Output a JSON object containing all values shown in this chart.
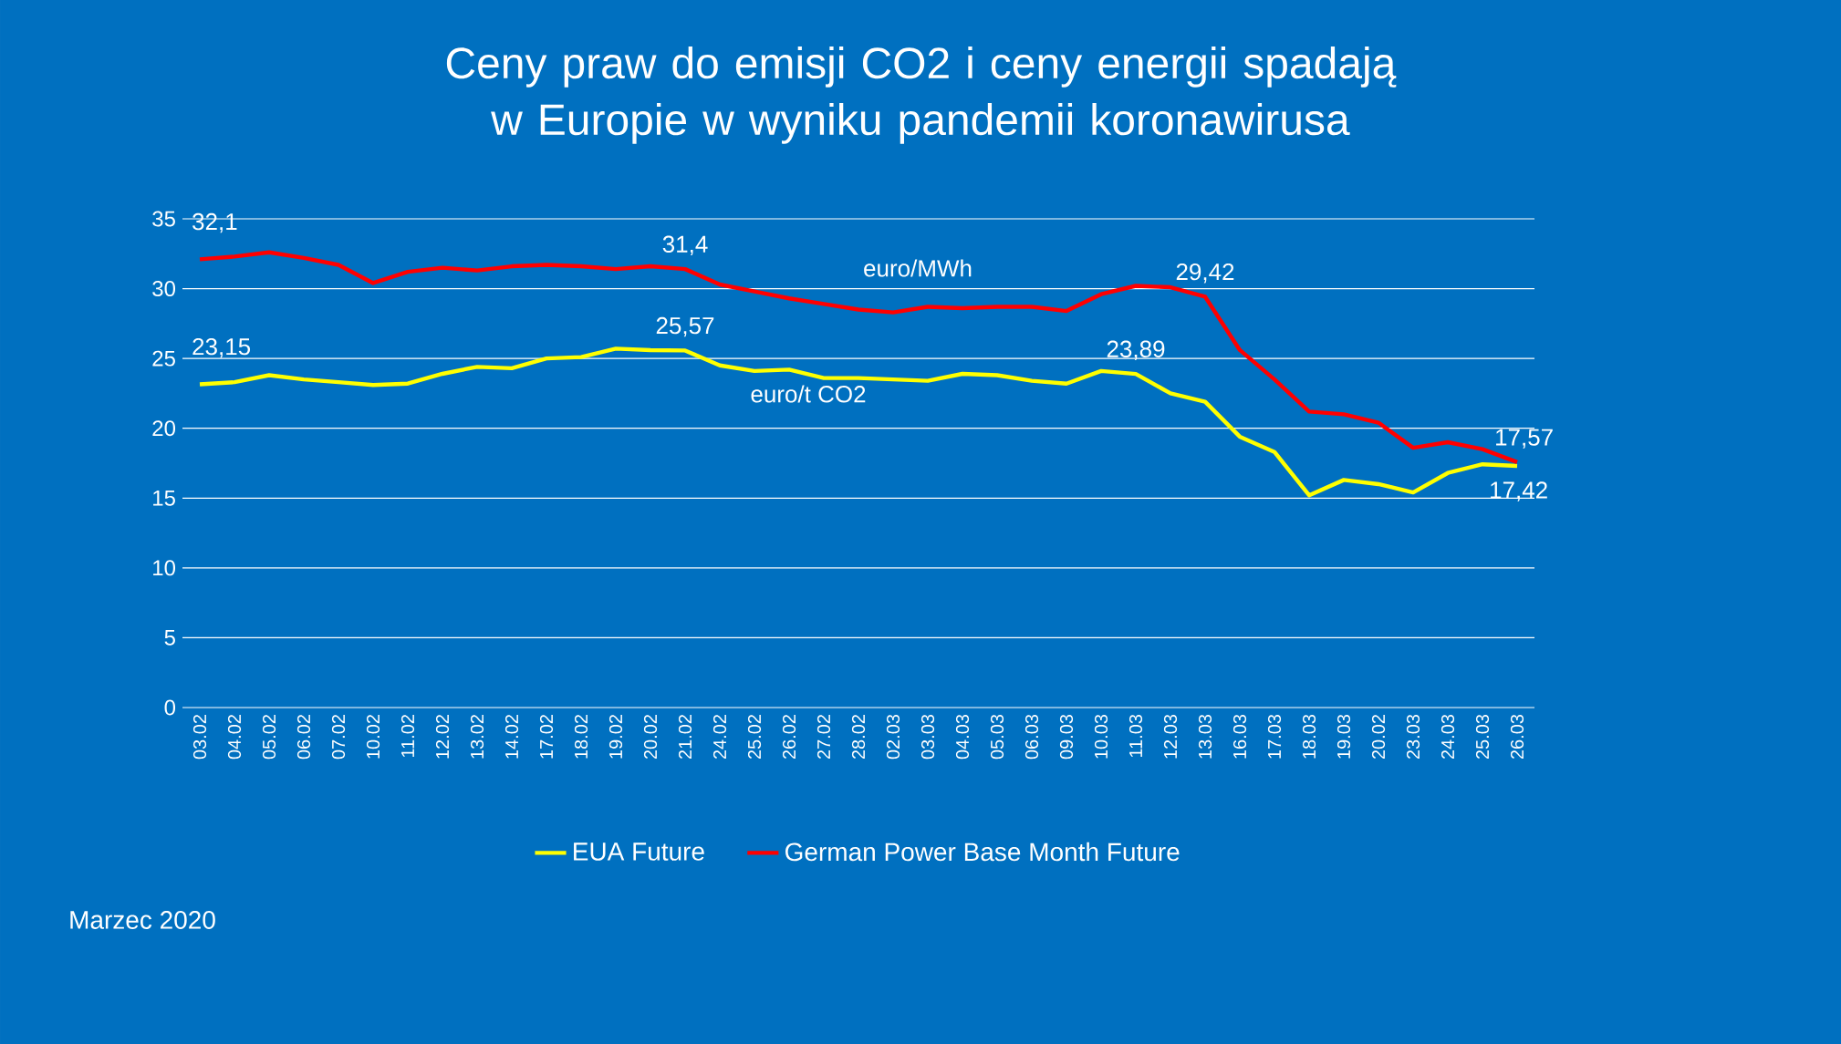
{
  "chart_data": {
    "type": "line",
    "title": "Ceny praw do emisji CO2 i ceny energii spadają w Europie w wyniku pandemii koronawirusa",
    "categories": [
      "03.02",
      "04.02",
      "05.02",
      "06.02",
      "07.02",
      "10.02",
      "11.02",
      "12.02",
      "13.02",
      "14.02",
      "17.02",
      "18.02",
      "19.02",
      "20.02",
      "21.02",
      "24.02",
      "25.02",
      "26.02",
      "27.02",
      "28.02",
      "02.03",
      "03.03",
      "04.03",
      "05.03",
      "06.03",
      "09.03",
      "10.03",
      "11.03",
      "12.03",
      "13.03",
      "16.03",
      "17.03",
      "18.03",
      "19.03",
      "20.02",
      "23.03",
      "24.03",
      "25.03",
      "26.03"
    ],
    "series": [
      {
        "name": "EUA Future",
        "color": "#ffff00",
        "values": [
          23.15,
          23.3,
          23.8,
          23.5,
          23.3,
          23.1,
          23.2,
          23.9,
          24.4,
          24.3,
          25.0,
          25.1,
          25.7,
          25.6,
          25.57,
          24.5,
          24.1,
          24.2,
          23.6,
          23.6,
          23.5,
          23.4,
          23.9,
          23.8,
          23.4,
          23.2,
          24.1,
          23.89,
          22.5,
          21.9,
          19.4,
          18.3,
          15.2,
          16.3,
          16.0,
          15.4,
          16.8,
          17.42,
          17.3
        ],
        "value_labels": [
          "23,15",
          null,
          null,
          null,
          null,
          null,
          null,
          null,
          null,
          null,
          null,
          null,
          null,
          null,
          "25,57",
          null,
          null,
          null,
          null,
          null,
          null,
          null,
          null,
          null,
          null,
          null,
          null,
          "23,89",
          null,
          null,
          null,
          null,
          null,
          null,
          null,
          null,
          null,
          "17,42",
          null
        ]
      },
      {
        "name": "German Power Base Month Future",
        "color": "#ff0000",
        "values": [
          32.1,
          32.3,
          32.6,
          32.2,
          31.7,
          30.4,
          31.2,
          31.5,
          31.3,
          31.6,
          31.7,
          31.6,
          31.4,
          31.6,
          31.4,
          30.3,
          29.8,
          29.3,
          28.9,
          28.5,
          28.3,
          28.7,
          28.6,
          28.7,
          28.7,
          28.4,
          29.6,
          30.2,
          30.1,
          29.42,
          25.6,
          23.5,
          21.2,
          21.0,
          20.4,
          18.6,
          19.0,
          18.5,
          17.57
        ],
        "value_labels": [
          "32,1",
          null,
          null,
          null,
          null,
          null,
          null,
          null,
          null,
          null,
          null,
          null,
          null,
          null,
          "31,4",
          null,
          null,
          null,
          null,
          null,
          null,
          null,
          null,
          null,
          null,
          null,
          null,
          null,
          null,
          "29,42",
          null,
          null,
          null,
          null,
          null,
          null,
          null,
          null,
          "17,57"
        ]
      }
    ],
    "ylim": [
      0,
      35
    ],
    "yticks": [
      0,
      5,
      10,
      15,
      20,
      25,
      30,
      35
    ],
    "grid": "y",
    "legend": "bottom",
    "line_style": "solid",
    "marker": "none",
    "annotations": [
      "euro/MWh",
      "euro/t CO2",
      "Marzec 2020"
    ]
  }
}
